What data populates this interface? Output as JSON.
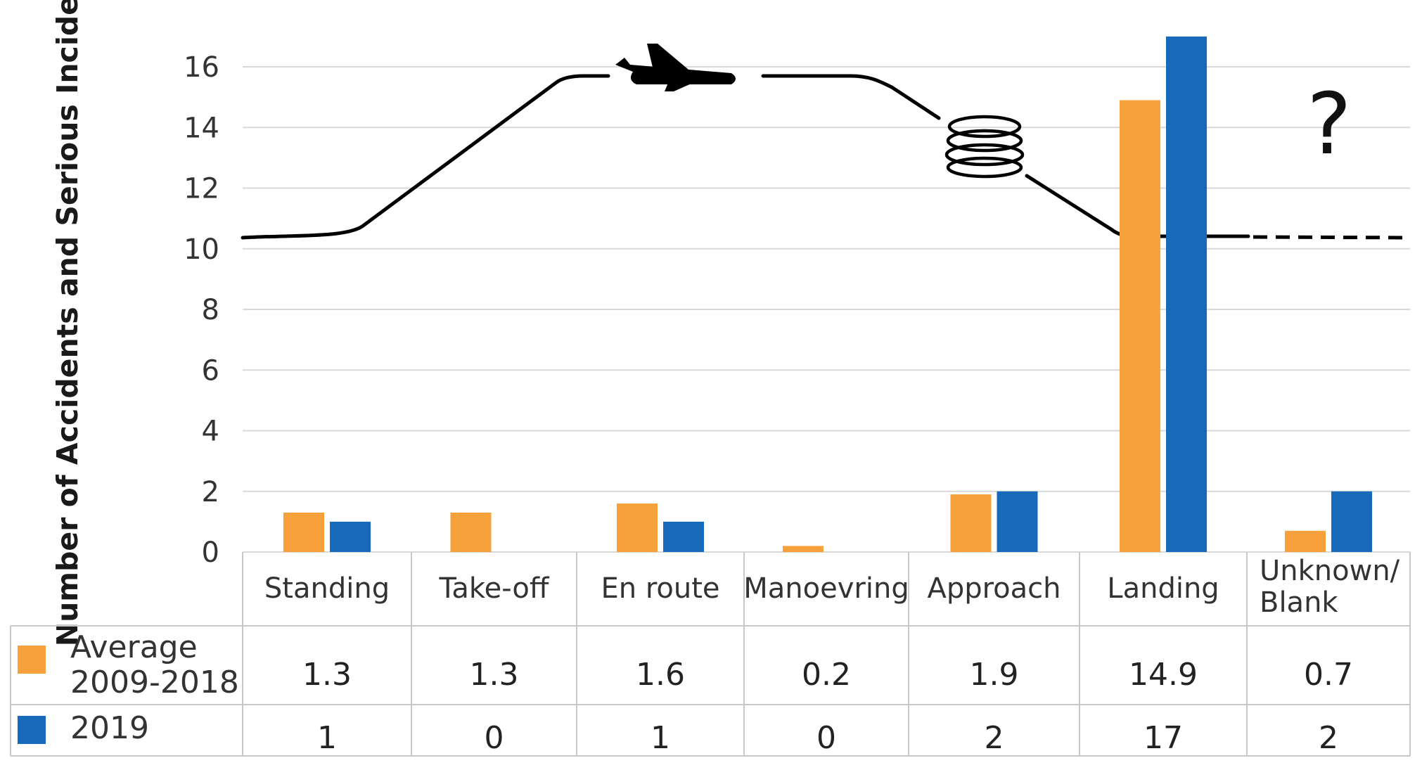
{
  "chart_data": {
    "type": "bar",
    "ylabel": "Number of Accidents and Serious Incidents",
    "categories": [
      "Standing",
      "Take-off",
      "En route",
      "Manoevring",
      "Approach",
      "Landing",
      "Unknown/ Blank"
    ],
    "series": [
      {
        "name": "Average 2009-2018",
        "color": "#F7A13C",
        "values": [
          1.3,
          1.3,
          1.6,
          0.2,
          1.9,
          14.9,
          0.7
        ],
        "labels": [
          "1.3",
          "1.3",
          "1.6",
          "0.2",
          "1.9",
          "14.9",
          "0.7"
        ]
      },
      {
        "name": "2019",
        "color": "#1769BA",
        "values": [
          1,
          0,
          1,
          0,
          2,
          17,
          2
        ],
        "labels": [
          "1",
          "0",
          "1",
          "0",
          "2",
          "17",
          "2"
        ]
      }
    ],
    "ylim": [
      0,
      17
    ],
    "yticks": [
      0,
      2,
      4,
      6,
      8,
      10,
      12,
      14,
      16
    ],
    "grid": true,
    "legend": "data-table-left",
    "annotation": "?",
    "icons": [
      "airplane-icon",
      "holding-pattern-icon"
    ]
  }
}
